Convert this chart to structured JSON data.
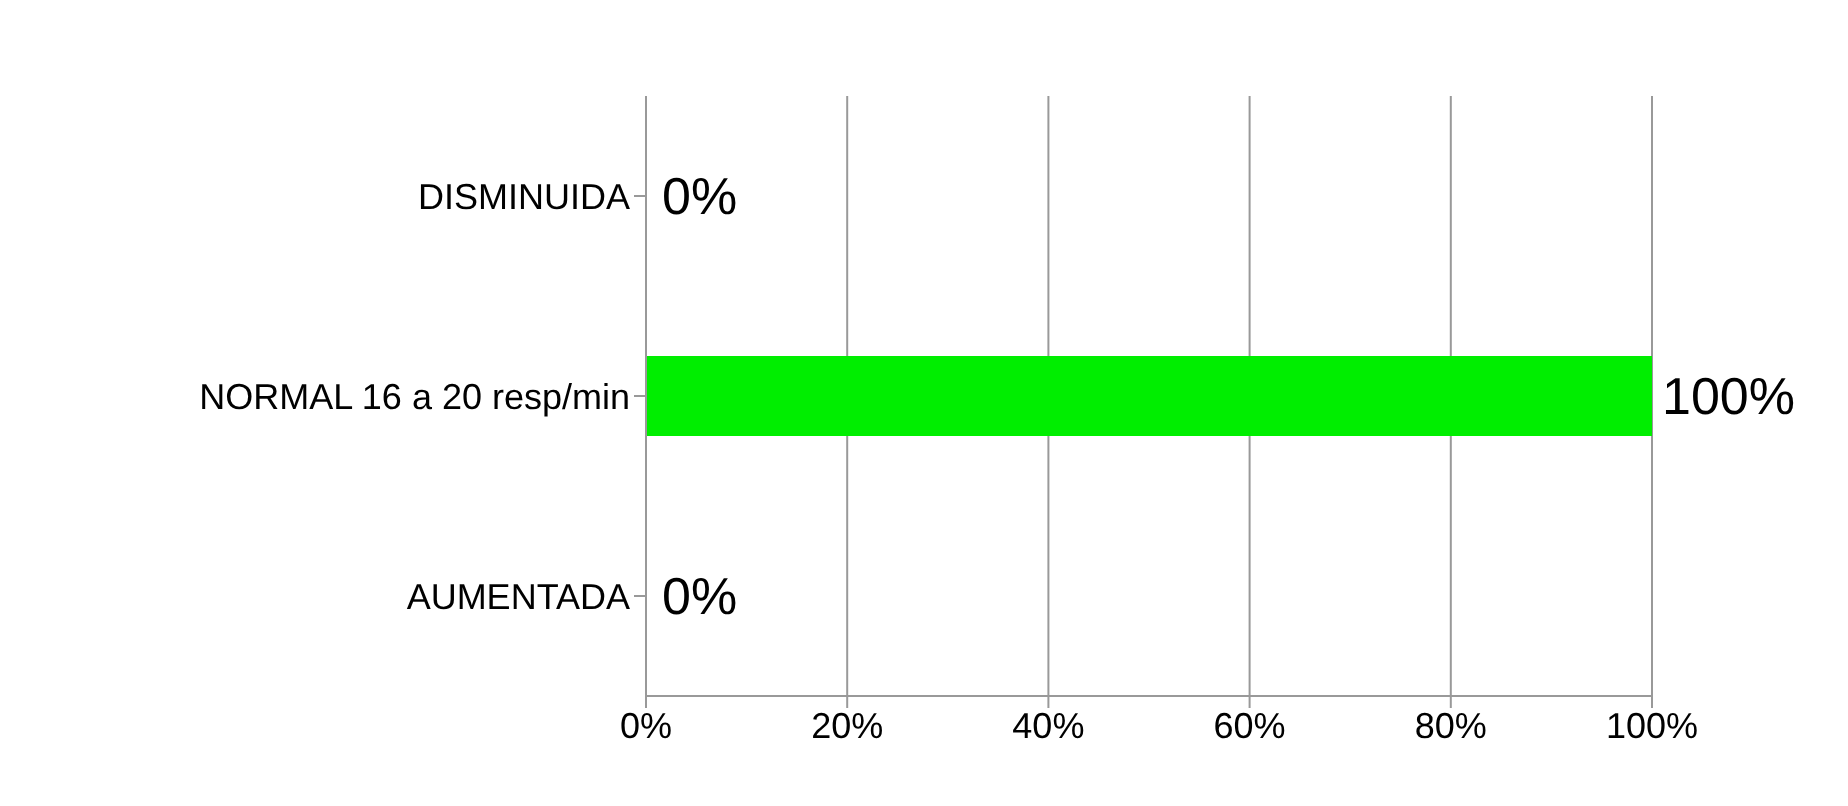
{
  "chart_data": {
    "type": "bar",
    "orientation": "horizontal",
    "categories": [
      "DISMINUIDA",
      "NORMAL 16 a 20 resp/min",
      "AUMENTADA"
    ],
    "values": [
      0,
      100,
      0
    ],
    "colors": [
      "#2f5483",
      "#00ee00",
      "#2f5483"
    ],
    "value_labels": [
      "0%",
      "100%",
      "0%"
    ],
    "xlim": [
      0,
      100
    ],
    "xticks": [
      {
        "value": 0,
        "label": "0%"
      },
      {
        "value": 20,
        "label": "20%"
      },
      {
        "value": 40,
        "label": "40%"
      },
      {
        "value": 60,
        "label": "60%"
      },
      {
        "value": 80,
        "label": "80%"
      },
      {
        "value": 100,
        "label": "100%"
      }
    ],
    "grid": "x",
    "legend": false
  }
}
